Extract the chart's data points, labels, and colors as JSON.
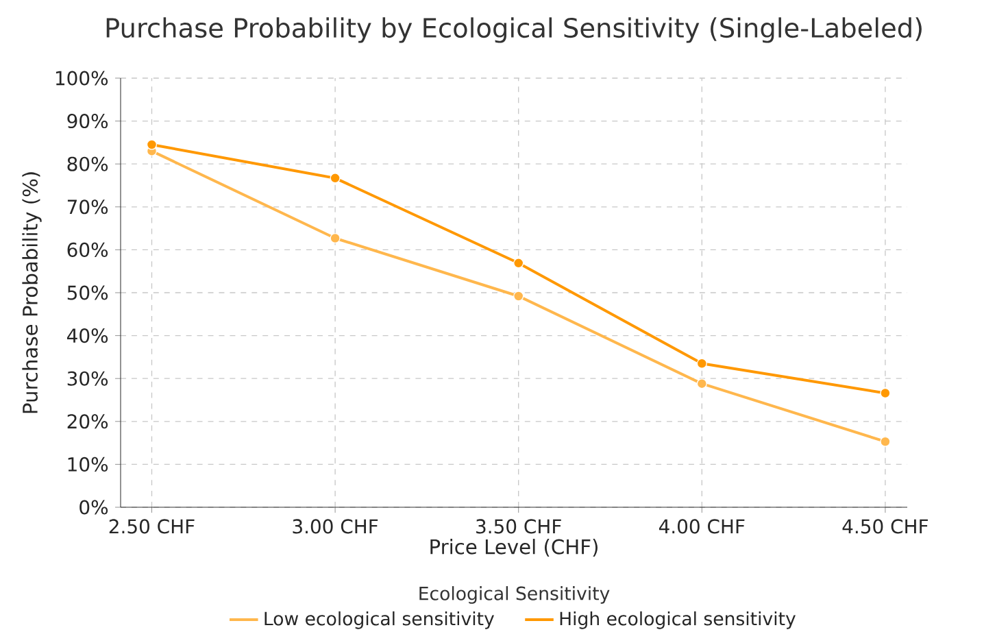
{
  "chart_data": {
    "type": "line",
    "title": "Purchase Probability by Ecological Sensitivity (Single-Labeled)",
    "xlabel": "Price Level (CHF)",
    "ylabel": "Purchase Probability (%)",
    "legend_title": "Ecological Sensitivity",
    "categories": [
      "2.50 CHF",
      "3.00 CHF",
      "3.50 CHF",
      "4.00 CHF",
      "4.50 CHF"
    ],
    "series": [
      {
        "name": "Low ecological sensitivity",
        "color": "#ffb74d",
        "values": [
          83.0,
          62.7,
          49.2,
          28.8,
          15.3
        ]
      },
      {
        "name": "High ecological sensitivity",
        "color": "#ff9800",
        "values": [
          84.5,
          76.7,
          56.9,
          33.5,
          26.6
        ]
      }
    ],
    "ylim": [
      0,
      100
    ],
    "yticks": [
      {
        "value": 0,
        "label": "0%"
      },
      {
        "value": 10,
        "label": "10%"
      },
      {
        "value": 20,
        "label": "20%"
      },
      {
        "value": 30,
        "label": "30%"
      },
      {
        "value": 40,
        "label": "40%"
      },
      {
        "value": 50,
        "label": "50%"
      },
      {
        "value": 60,
        "label": "60%"
      },
      {
        "value": 70,
        "label": "70%"
      },
      {
        "value": 80,
        "label": "80%"
      },
      {
        "value": 90,
        "label": "90%"
      },
      {
        "value": 100,
        "label": "100%"
      }
    ],
    "grid": true,
    "legend": "bottom",
    "marker": "circle",
    "line_style": "solid"
  }
}
